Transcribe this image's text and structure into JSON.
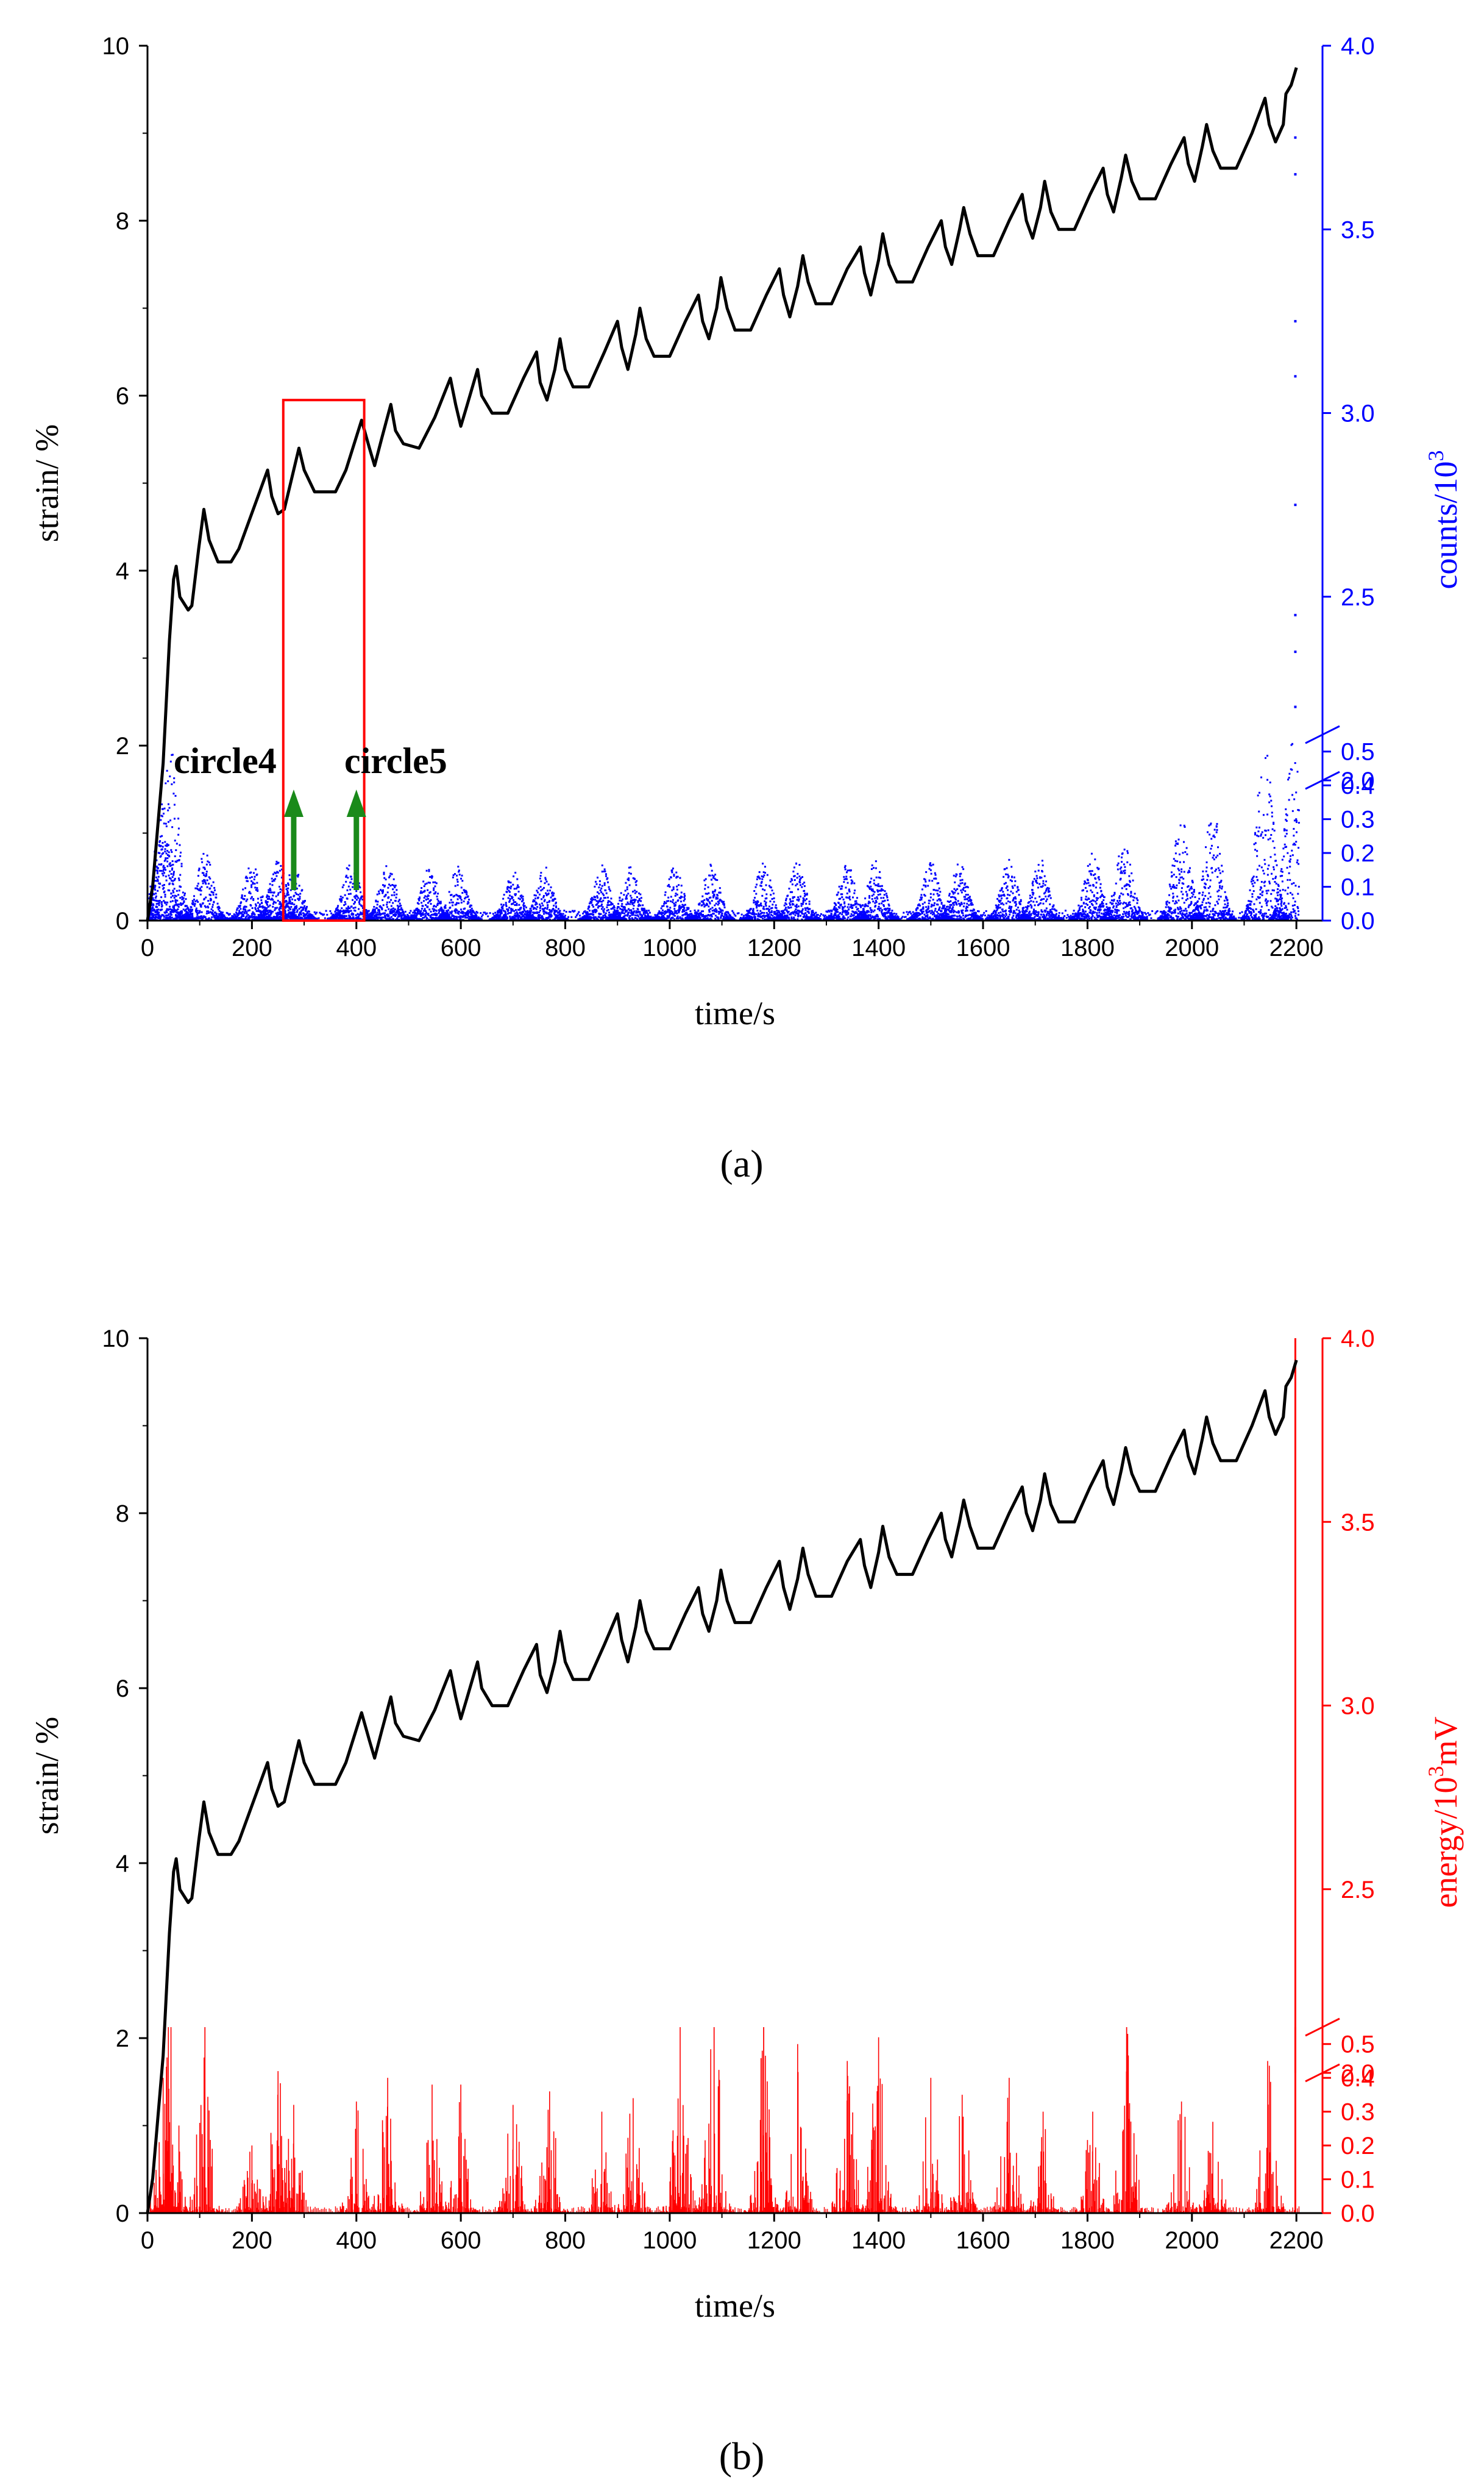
{
  "chart_data": [
    {
      "panel_label": "(a)",
      "type": "line+scatter",
      "title": "",
      "xlabel": "time/s",
      "ylabel_left": "strain/ %",
      "ylabel_right_main": "counts/10",
      "ylabel_right_sup": "3",
      "xlim": [
        0,
        2250
      ],
      "xticks": [
        0,
        200,
        400,
        600,
        800,
        1000,
        1200,
        1400,
        1600,
        1800,
        2000,
        2200
      ],
      "ylim_left": [
        0,
        10
      ],
      "yticks_left": [
        0,
        2,
        4,
        6,
        8,
        10
      ],
      "right_axis_lower": {
        "range": [
          0.0,
          0.55
        ],
        "ticks": [
          "0.0",
          "0.1",
          "0.2",
          "0.3",
          "0.4",
          "0.5"
        ]
      },
      "right_axis_upper": {
        "range": [
          2.0,
          4.0
        ],
        "ticks": [
          "2.0",
          "2.5",
          "3.0",
          "3.5",
          "4.0"
        ]
      },
      "right_color": "#0000ff",
      "strain_series": {
        "name": "strain",
        "color": "#000000",
        "points": [
          [
            0,
            0
          ],
          [
            10,
            0.4
          ],
          [
            30,
            1.8
          ],
          [
            42,
            3.2
          ],
          [
            50,
            3.9
          ],
          [
            55,
            4.05
          ],
          [
            62,
            3.7
          ],
          [
            78,
            3.55
          ],
          [
            85,
            3.6
          ],
          [
            98,
            4.25
          ],
          [
            108,
            4.7
          ],
          [
            118,
            4.35
          ],
          [
            135,
            4.1
          ],
          [
            160,
            4.1
          ],
          [
            175,
            4.25
          ],
          [
            230,
            5.15
          ],
          [
            238,
            4.85
          ],
          [
            250,
            4.65
          ],
          [
            262,
            4.7
          ],
          [
            290,
            5.4
          ],
          [
            300,
            5.15
          ],
          [
            320,
            4.9
          ],
          [
            360,
            4.9
          ],
          [
            380,
            5.15
          ],
          [
            410,
            5.72
          ],
          [
            425,
            5.4
          ],
          [
            435,
            5.2
          ],
          [
            448,
            5.5
          ],
          [
            466,
            5.9
          ],
          [
            475,
            5.6
          ],
          [
            490,
            5.45
          ],
          [
            520,
            5.4
          ],
          [
            550,
            5.75
          ],
          [
            580,
            6.2
          ],
          [
            590,
            5.9
          ],
          [
            600,
            5.65
          ],
          [
            610,
            5.85
          ],
          [
            632,
            6.3
          ],
          [
            640,
            6.0
          ],
          [
            660,
            5.8
          ],
          [
            690,
            5.8
          ],
          [
            720,
            6.2
          ],
          [
            745,
            6.5
          ],
          [
            752,
            6.15
          ],
          [
            765,
            5.95
          ],
          [
            780,
            6.3
          ],
          [
            790,
            6.65
          ],
          [
            800,
            6.3
          ],
          [
            815,
            6.1
          ],
          [
            845,
            6.1
          ],
          [
            875,
            6.5
          ],
          [
            900,
            6.85
          ],
          [
            908,
            6.55
          ],
          [
            920,
            6.3
          ],
          [
            935,
            6.7
          ],
          [
            943,
            7.0
          ],
          [
            955,
            6.65
          ],
          [
            970,
            6.45
          ],
          [
            1000,
            6.45
          ],
          [
            1030,
            6.85
          ],
          [
            1055,
            7.15
          ],
          [
            1063,
            6.85
          ],
          [
            1075,
            6.65
          ],
          [
            1090,
            7.0
          ],
          [
            1098,
            7.35
          ],
          [
            1110,
            7.0
          ],
          [
            1125,
            6.75
          ],
          [
            1155,
            6.75
          ],
          [
            1185,
            7.15
          ],
          [
            1210,
            7.45
          ],
          [
            1218,
            7.15
          ],
          [
            1230,
            6.9
          ],
          [
            1245,
            7.25
          ],
          [
            1255,
            7.6
          ],
          [
            1265,
            7.3
          ],
          [
            1280,
            7.05
          ],
          [
            1310,
            7.05
          ],
          [
            1340,
            7.45
          ],
          [
            1365,
            7.7
          ],
          [
            1373,
            7.4
          ],
          [
            1385,
            7.15
          ],
          [
            1400,
            7.55
          ],
          [
            1408,
            7.85
          ],
          [
            1420,
            7.5
          ],
          [
            1435,
            7.3
          ],
          [
            1465,
            7.3
          ],
          [
            1495,
            7.7
          ],
          [
            1520,
            8.0
          ],
          [
            1528,
            7.7
          ],
          [
            1540,
            7.5
          ],
          [
            1555,
            7.9
          ],
          [
            1563,
            8.15
          ],
          [
            1575,
            7.85
          ],
          [
            1590,
            7.6
          ],
          [
            1620,
            7.6
          ],
          [
            1650,
            8.0
          ],
          [
            1675,
            8.3
          ],
          [
            1683,
            8.0
          ],
          [
            1695,
            7.8
          ],
          [
            1710,
            8.15
          ],
          [
            1718,
            8.45
          ],
          [
            1730,
            8.1
          ],
          [
            1745,
            7.9
          ],
          [
            1775,
            7.9
          ],
          [
            1805,
            8.3
          ],
          [
            1830,
            8.6
          ],
          [
            1838,
            8.3
          ],
          [
            1850,
            8.1
          ],
          [
            1865,
            8.5
          ],
          [
            1873,
            8.75
          ],
          [
            1885,
            8.45
          ],
          [
            1900,
            8.25
          ],
          [
            1930,
            8.25
          ],
          [
            1960,
            8.65
          ],
          [
            1985,
            8.95
          ],
          [
            1993,
            8.65
          ],
          [
            2005,
            8.45
          ],
          [
            2020,
            8.85
          ],
          [
            2028,
            9.1
          ],
          [
            2040,
            8.8
          ],
          [
            2055,
            8.6
          ],
          [
            2085,
            8.6
          ],
          [
            2115,
            9.0
          ],
          [
            2140,
            9.4
          ],
          [
            2148,
            9.1
          ],
          [
            2160,
            8.9
          ],
          [
            2175,
            9.1
          ],
          [
            2180,
            9.45
          ],
          [
            2190,
            9.55
          ],
          [
            2200,
            9.75
          ]
        ]
      },
      "ae_series": {
        "name": "AE counts",
        "color": "#0000ff",
        "burst_centers": [
          30,
          42,
          110,
          200,
          250,
          280,
          390,
          460,
          540,
          595,
          700,
          760,
          870,
          925,
          1010,
          1080,
          1180,
          1245,
          1340,
          1395,
          1500,
          1555,
          1650,
          1710,
          1810,
          1870,
          1980,
          2040,
          2140,
          2195
        ],
        "burst_peaks": [
          0.35,
          0.55,
          0.2,
          0.17,
          0.18,
          0.16,
          0.18,
          0.17,
          0.16,
          0.16,
          0.15,
          0.16,
          0.16,
          0.16,
          0.16,
          0.17,
          0.17,
          0.17,
          0.17,
          0.18,
          0.17,
          0.17,
          0.18,
          0.18,
          0.2,
          0.23,
          0.3,
          0.33,
          0.55,
          0.55
        ],
        "upper_scatter": [
          2.2,
          2.35,
          2.45,
          2.75,
          3.1,
          3.25,
          3.65,
          3.75
        ]
      },
      "annotations": [
        "circle4",
        "circle5"
      ],
      "highlight_box_x": [
        260,
        415
      ],
      "highlight_box_y": [
        0,
        5.95
      ]
    },
    {
      "panel_label": "(b)",
      "type": "line+bar",
      "title": "",
      "xlabel": "time/s",
      "ylabel_left": "strain/ %",
      "ylabel_right_main": "energy/10",
      "ylabel_right_sup": "3",
      "ylabel_right_tail": "mV",
      "xlim": [
        0,
        2250
      ],
      "xticks": [
        0,
        200,
        400,
        600,
        800,
        1000,
        1200,
        1400,
        1600,
        1800,
        2000,
        2200
      ],
      "ylim_left": [
        0,
        10
      ],
      "yticks_left": [
        0,
        2,
        4,
        6,
        8,
        10
      ],
      "right_axis_lower": {
        "range": [
          0.0,
          0.55
        ],
        "ticks": [
          "0.0",
          "0.1",
          "0.2",
          "0.3",
          "0.4",
          "0.5"
        ]
      },
      "right_axis_upper": {
        "range": [
          2.0,
          4.0
        ],
        "ticks": [
          "2.0",
          "2.5",
          "3.0",
          "3.5",
          "4.0"
        ]
      },
      "right_color": "#ff0000",
      "ae_series": {
        "name": "AE energy",
        "color": "#ff0000",
        "burst_centers": [
          30,
          45,
          110,
          200,
          250,
          280,
          400,
          460,
          545,
          600,
          700,
          770,
          870,
          930,
          1020,
          1085,
          1180,
          1245,
          1340,
          1400,
          1500,
          1560,
          1650,
          1715,
          1810,
          1875,
          1980,
          2040,
          2145,
          2198
        ],
        "burst_peaks": [
          0.4,
          0.55,
          0.55,
          0.2,
          0.42,
          0.32,
          0.33,
          0.4,
          0.38,
          0.38,
          0.32,
          0.36,
          0.3,
          0.34,
          0.55,
          0.55,
          0.55,
          0.5,
          0.45,
          0.52,
          0.4,
          0.35,
          0.4,
          0.3,
          0.3,
          0.55,
          0.33,
          0.27,
          0.45,
          4.0
        ],
        "spike_time": 2198,
        "spike_value": 4.0
      }
    }
  ],
  "annotations": {
    "circle4": "circle4",
    "circle5": "circle5"
  },
  "panel_labels": {
    "a": "(a)",
    "b": "(b)"
  }
}
